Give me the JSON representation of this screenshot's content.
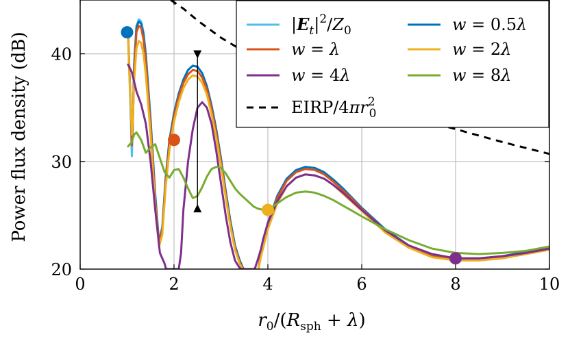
{
  "chart_data": {
    "type": "line",
    "title": "",
    "xlabel": "r₀/(Rsph + λ)",
    "ylabel": "Power flux density (dB)",
    "xlim": [
      0,
      10
    ],
    "ylim": [
      20,
      45
    ],
    "x_ticks": [
      "0",
      "2",
      "4",
      "6",
      "8",
      "10"
    ],
    "y_ticks": [
      "20",
      "30",
      "40"
    ],
    "grid": true,
    "legend_position": "top-right",
    "series": [
      {
        "name": "|Et|²/Z0",
        "color": "#4DBEEE",
        "x": [
          1.02,
          1.05,
          1.08,
          1.1,
          1.12,
          1.15,
          1.2,
          1.25,
          1.3,
          1.35,
          1.4,
          1.5,
          1.6,
          1.68,
          1.75,
          1.82,
          1.9,
          2.0,
          2.1,
          2.2,
          2.3,
          2.4,
          2.5,
          2.6,
          2.7,
          2.8,
          2.9,
          3.0,
          3.1,
          3.2,
          3.3,
          3.4,
          3.48
        ],
        "y": [
          41.8,
          38,
          34,
          30.5,
          33,
          39,
          42.6,
          43.2,
          43,
          42,
          40,
          34,
          27,
          22.5,
          24,
          28.5,
          32,
          34.5,
          36.3,
          37.6,
          38.5,
          38.9,
          38.8,
          38.2,
          37,
          35.2,
          33,
          30.3,
          27.3,
          24.5,
          22.2,
          20.8,
          20
        ]
      },
      {
        "name": "w = 0.5λ",
        "color": "#0072BD",
        "x": [
          1.02,
          1.05,
          1.08,
          1.1,
          1.12,
          1.15,
          1.2,
          1.25,
          1.3,
          1.35,
          1.4,
          1.5,
          1.6,
          1.68,
          1.75,
          1.82,
          1.9,
          2.0,
          2.1,
          2.2,
          2.3,
          2.4,
          2.5,
          2.6,
          2.7,
          2.8,
          2.9,
          3.0,
          3.1,
          3.2,
          3.3,
          3.4,
          3.48,
          3.8,
          3.85,
          3.9,
          4.0,
          4.2,
          4.4,
          4.6,
          4.8,
          5.0,
          5.2,
          5.4,
          5.6,
          5.8,
          6.0,
          6.5,
          7.0,
          7.5,
          8.0,
          8.5,
          9.0,
          9.5,
          10.0
        ],
        "y": [
          42,
          38.5,
          35,
          31.5,
          33,
          39,
          42.5,
          43,
          42.8,
          41.8,
          39.8,
          33.8,
          26.8,
          22.4,
          23.8,
          28.3,
          31.9,
          34.5,
          36.3,
          37.6,
          38.5,
          38.9,
          38.8,
          38.2,
          37,
          35.2,
          33,
          30.3,
          27.3,
          24.5,
          22.2,
          20.8,
          20,
          20,
          21.5,
          22.5,
          24.3,
          26.8,
          28.4,
          29.2,
          29.5,
          29.4,
          29,
          28.3,
          27.5,
          26.6,
          25.7,
          23.7,
          22.2,
          21.3,
          21,
          21,
          21.2,
          21.6,
          22
        ]
      },
      {
        "name": "w = λ",
        "color": "#D95319",
        "x": [
          1.02,
          1.05,
          1.08,
          1.1,
          1.12,
          1.15,
          1.2,
          1.25,
          1.3,
          1.35,
          1.4,
          1.5,
          1.6,
          1.68,
          1.75,
          1.82,
          1.9,
          2.0,
          2.1,
          2.2,
          2.3,
          2.4,
          2.5,
          2.6,
          2.7,
          2.8,
          2.9,
          3.0,
          3.1,
          3.2,
          3.3,
          3.4,
          3.47,
          3.8,
          3.85,
          3.9,
          4.0,
          4.2,
          4.4,
          4.6,
          4.8,
          5.0,
          5.2,
          5.4,
          5.6,
          5.8,
          6.0,
          6.5,
          7.0,
          7.5,
          8.0,
          8.5,
          9.0,
          9.5,
          10.0
        ],
        "y": [
          42,
          38.3,
          35,
          31.5,
          33,
          38.5,
          42,
          42.6,
          42.4,
          41.3,
          39.3,
          33.3,
          26.4,
          22.3,
          23.6,
          28,
          31.6,
          34.2,
          36,
          37.3,
          38.1,
          38.5,
          38.4,
          37.8,
          36.7,
          34.9,
          32.7,
          30,
          27,
          24.2,
          22,
          20.6,
          20,
          20,
          21.4,
          22.4,
          24.2,
          26.6,
          28.2,
          29,
          29.3,
          29.2,
          28.8,
          28.1,
          27.3,
          26.5,
          25.6,
          23.6,
          22.1,
          21.2,
          20.9,
          20.9,
          21.1,
          21.5,
          21.9
        ]
      },
      {
        "name": "w = 2λ",
        "color": "#EDB120",
        "x": [
          1.02,
          1.05,
          1.08,
          1.1,
          1.12,
          1.15,
          1.2,
          1.25,
          1.3,
          1.35,
          1.4,
          1.5,
          1.6,
          1.68,
          1.75,
          1.82,
          1.9,
          2.0,
          2.1,
          2.2,
          2.3,
          2.4,
          2.5,
          2.6,
          2.7,
          2.8,
          2.9,
          3.0,
          3.1,
          3.2,
          3.3,
          3.4,
          3.46,
          3.8,
          3.85,
          3.9,
          4.0,
          4.2,
          4.4,
          4.6,
          4.8,
          5.0,
          5.2,
          5.4,
          5.6,
          5.8,
          6.0,
          6.5,
          7.0,
          7.5,
          8.0,
          8.5,
          9.0,
          9.5,
          10.0
        ],
        "y": [
          41.5,
          38,
          35,
          32.5,
          33.5,
          37.5,
          40.5,
          41.2,
          41,
          40,
          38,
          32.5,
          25.8,
          22.1,
          23.2,
          27.5,
          31,
          33.7,
          35.5,
          36.8,
          37.6,
          38,
          37.9,
          37.3,
          36.2,
          34.4,
          32.2,
          29.6,
          26.7,
          24,
          21.8,
          20.5,
          20,
          20,
          21.1,
          22,
          23.7,
          26.1,
          27.7,
          28.5,
          28.8,
          28.7,
          28.4,
          27.8,
          27,
          26.2,
          25.4,
          23.4,
          22,
          21.1,
          20.8,
          20.8,
          21,
          21.4,
          21.8
        ]
      },
      {
        "name": "w = 4λ",
        "color": "#7E2F8E",
        "x": [
          1.02,
          1.1,
          1.2,
          1.3,
          1.4,
          1.5,
          1.6,
          1.7,
          1.8,
          1.83,
          2.1,
          2.15,
          2.2,
          2.3,
          2.4,
          2.5,
          2.6,
          2.7,
          2.8,
          2.9,
          3.0,
          3.1,
          3.2,
          3.3,
          3.4,
          3.44,
          3.72,
          3.78,
          3.85,
          3.9,
          4.0,
          4.2,
          4.4,
          4.6,
          4.8,
          5.0,
          5.2,
          5.4,
          5.6,
          5.8,
          6.0,
          6.5,
          7.0,
          7.5,
          8.0,
          8.5,
          9.0,
          9.5,
          10.0
        ],
        "y": [
          39,
          38.3,
          36.5,
          35.3,
          33.5,
          30,
          25.5,
          21.5,
          20.5,
          20,
          20,
          21.5,
          25.5,
          30,
          33,
          35,
          35.5,
          35,
          33.5,
          31,
          28,
          25,
          22.5,
          20.8,
          20.1,
          20,
          20,
          20.8,
          21.8,
          22.8,
          24.3,
          26.3,
          27.7,
          28.5,
          28.8,
          28.7,
          28.4,
          27.8,
          27.1,
          26.3,
          25.5,
          23.6,
          22.2,
          21.4,
          21,
          21,
          21.2,
          21.5,
          21.9
        ]
      },
      {
        "name": "w = 8λ",
        "color": "#77AC30",
        "x": [
          1.02,
          1.1,
          1.15,
          1.2,
          1.3,
          1.4,
          1.5,
          1.6,
          1.7,
          1.8,
          1.9,
          2.0,
          2.1,
          2.2,
          2.3,
          2.4,
          2.5,
          2.6,
          2.7,
          2.8,
          2.9,
          3.0,
          3.1,
          3.2,
          3.3,
          3.4,
          3.5,
          3.6,
          3.7,
          3.8,
          3.9,
          4.0,
          4.2,
          4.4,
          4.6,
          4.8,
          5.0,
          5.2,
          5.4,
          5.6,
          5.8,
          6.0,
          6.5,
          7.0,
          7.5,
          8.0,
          8.5,
          9.0,
          9.5,
          10.0
        ],
        "y": [
          31.4,
          31.8,
          32.5,
          32.7,
          32,
          30.8,
          31.3,
          31.6,
          30.3,
          29,
          28.5,
          29.2,
          29.3,
          28.5,
          27.5,
          26.6,
          26.8,
          27.6,
          28.6,
          29.3,
          29.5,
          29.4,
          28.9,
          28.2,
          27.5,
          27,
          26.6,
          26.2,
          25.8,
          25.6,
          25.5,
          25.5,
          26.1,
          26.7,
          27.1,
          27.2,
          27.1,
          26.8,
          26.4,
          25.9,
          25.4,
          24.9,
          23.7,
          22.7,
          21.9,
          21.5,
          21.4,
          21.5,
          21.7,
          22.1
        ]
      },
      {
        "name": "EIRP/4πr0²",
        "color": "#000000",
        "style": "dashed",
        "x": [
          1.93,
          2.2,
          2.5,
          3.0,
          3.5,
          4.0,
          5.0,
          6.0,
          7.0,
          8.0,
          9.0,
          10.0
        ],
        "y": [
          45,
          44.2,
          43.1,
          41.5,
          40.2,
          39,
          37.1,
          35.5,
          34.2,
          33,
          31.8,
          30.7
        ]
      }
    ],
    "markers": [
      {
        "x": 1.0,
        "y": 42,
        "color": "#0072BD"
      },
      {
        "x": 2.0,
        "y": 32,
        "color": "#D95319"
      },
      {
        "x": 4.0,
        "y": 25.5,
        "color": "#EDB120"
      },
      {
        "x": 8.0,
        "y": 21,
        "color": "#7E2F8E"
      }
    ],
    "annotation_range": {
      "x": 2.5,
      "y_top": 40.2,
      "y_bottom": 25.4
    }
  }
}
